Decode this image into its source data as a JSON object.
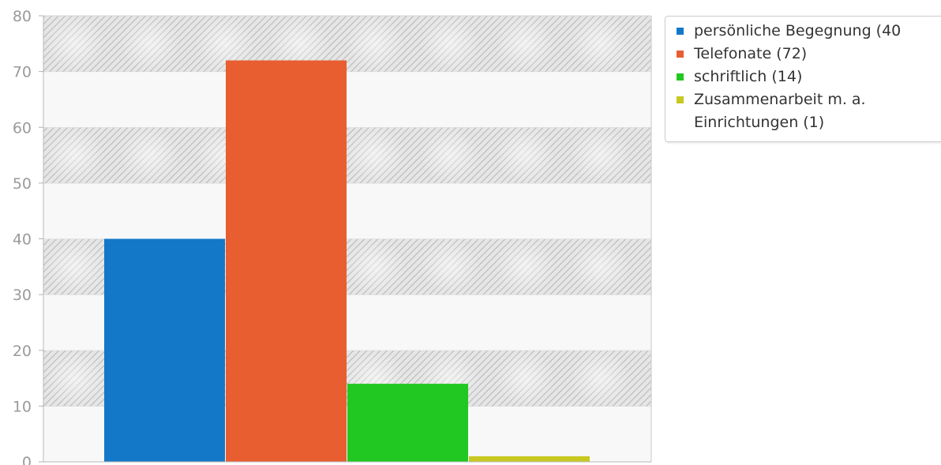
{
  "chart_data": {
    "type": "bar",
    "categories": [
      "persönliche Begegnung (40",
      "Telefonate (72)",
      "schriftlich (14)",
      "Zusammenarbeit m. a. Einrichtungen (1)"
    ],
    "values": [
      40,
      72,
      14,
      1
    ],
    "colors": [
      "#1478c8",
      "#e85e30",
      "#21c821",
      "#c8c821"
    ],
    "ylim": [
      0,
      80
    ],
    "yticks": [
      "0",
      "10",
      "20",
      "30",
      "40",
      "50",
      "60",
      "70",
      "80"
    ],
    "grid": true,
    "grid_style": "alternating hatched bands",
    "legend_position": "top-right",
    "title": "",
    "xlabel": "",
    "ylabel": ""
  }
}
